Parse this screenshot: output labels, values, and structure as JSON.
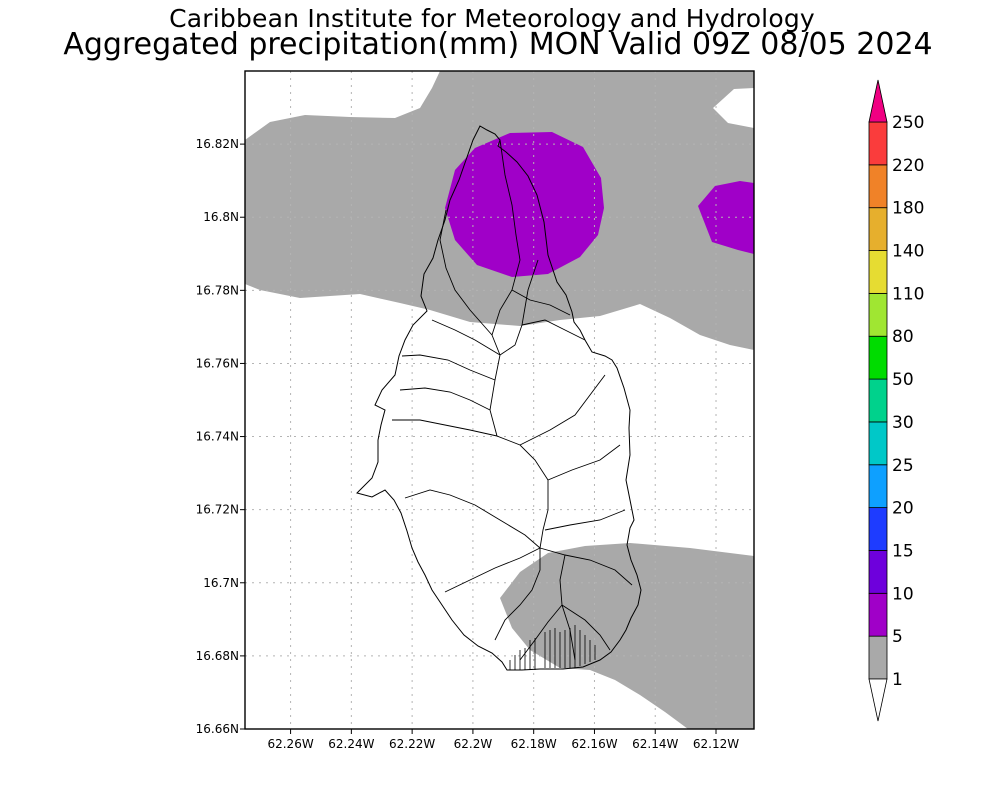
{
  "titles": {
    "line1": "Caribbean Institute for Meteorology and Hydrology",
    "line2": "Aggregated precipitation(mm) MON Valid 09Z 08/05 2024"
  },
  "map": {
    "lat_ticks": [
      "16.82N",
      "16.8N",
      "16.78N",
      "16.76N",
      "16.74N",
      "16.72N",
      "16.7N",
      "16.68N",
      "16.66N"
    ],
    "lon_ticks": [
      "62.26W",
      "62.24W",
      "62.22W",
      "62.2W",
      "62.18W",
      "62.16W",
      "62.14W",
      "62.12W"
    ],
    "grid": true
  },
  "colorbar": {
    "labels": [
      "1",
      "5",
      "10",
      "15",
      "20",
      "25",
      "30",
      "50",
      "80",
      "110",
      "140",
      "180",
      "220",
      "250"
    ],
    "colors": [
      "#a9a9a9",
      "#a000c8",
      "#6e00dc",
      "#1e3cff",
      "#0ea0ff",
      "#00c8c8",
      "#00d28c",
      "#00dc00",
      "#a0e632",
      "#e6dc32",
      "#e6af2d",
      "#f08228",
      "#fa3c3c",
      "#f00082"
    ],
    "under_color": "#ffffff"
  },
  "shaded_regions": [
    {
      "name": "north-band",
      "color": "#a9a9a9"
    },
    {
      "name": "south-band",
      "color": "#a9a9a9"
    },
    {
      "name": "north-core",
      "color": "#a000c8"
    },
    {
      "name": "east-core",
      "color": "#a000c8"
    }
  ]
}
